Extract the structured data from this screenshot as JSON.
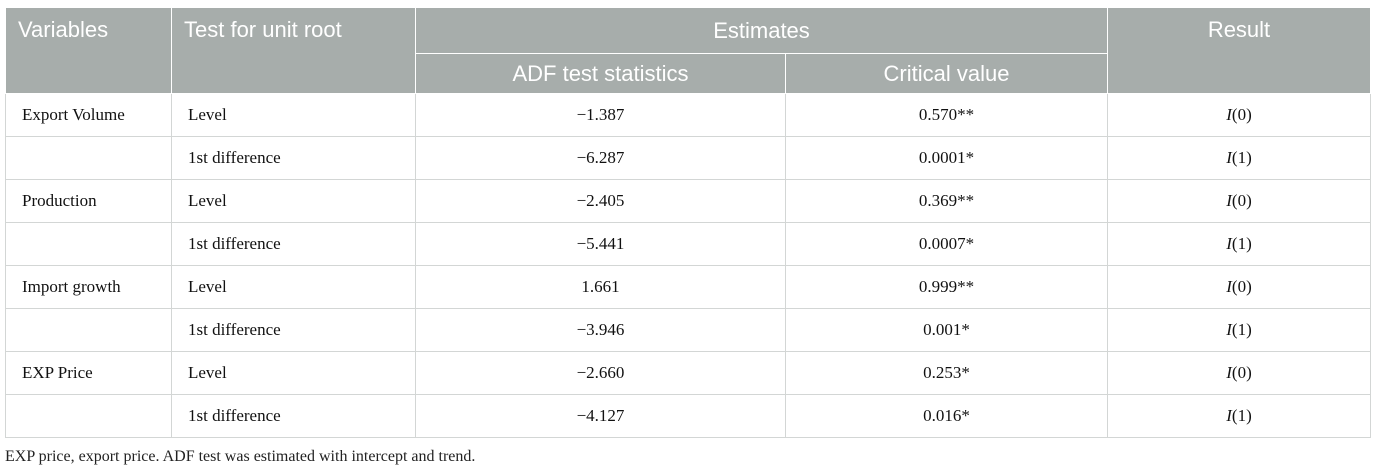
{
  "table": {
    "headers": {
      "variables": "Variables",
      "test": "Test for unit root",
      "estimates": "Estimates",
      "adf": "ADF test statistics",
      "critical": "Critical value",
      "result": "Result"
    },
    "rows": [
      {
        "variable": "Export Volume",
        "test": "Level",
        "adf": "−1.387",
        "critical": "0.570**",
        "result_var": "I",
        "result_order": "(0)"
      },
      {
        "variable": "",
        "test": "1st difference",
        "adf": "−6.287",
        "critical": "0.0001*",
        "result_var": "I",
        "result_order": "(1)"
      },
      {
        "variable": "Production",
        "test": "Level",
        "adf": "−2.405",
        "critical": "0.369**",
        "result_var": "I",
        "result_order": "(0)"
      },
      {
        "variable": "",
        "test": "1st difference",
        "adf": "−5.441",
        "critical": "0.0007*",
        "result_var": "I",
        "result_order": "(1)"
      },
      {
        "variable": "Import growth",
        "test": "Level",
        "adf": "1.661",
        "critical": "0.999**",
        "result_var": "I",
        "result_order": "(0)"
      },
      {
        "variable": "",
        "test": "1st difference",
        "adf": "−3.946",
        "critical": "0.001*",
        "result_var": "I",
        "result_order": "(1)"
      },
      {
        "variable": "EXP Price",
        "test": "Level",
        "adf": "−2.660",
        "critical": "0.253*",
        "result_var": "I",
        "result_order": "(0)"
      },
      {
        "variable": "",
        "test": "1st difference",
        "adf": "−4.127",
        "critical": "0.016*",
        "result_var": "I",
        "result_order": "(1)"
      }
    ]
  },
  "footnote": "EXP price, export price. ADF test was estimated with intercept and trend.",
  "colors": {
    "header_bg": "#a7adab",
    "header_text": "#ffffff",
    "grid": "#d3d6d5"
  }
}
